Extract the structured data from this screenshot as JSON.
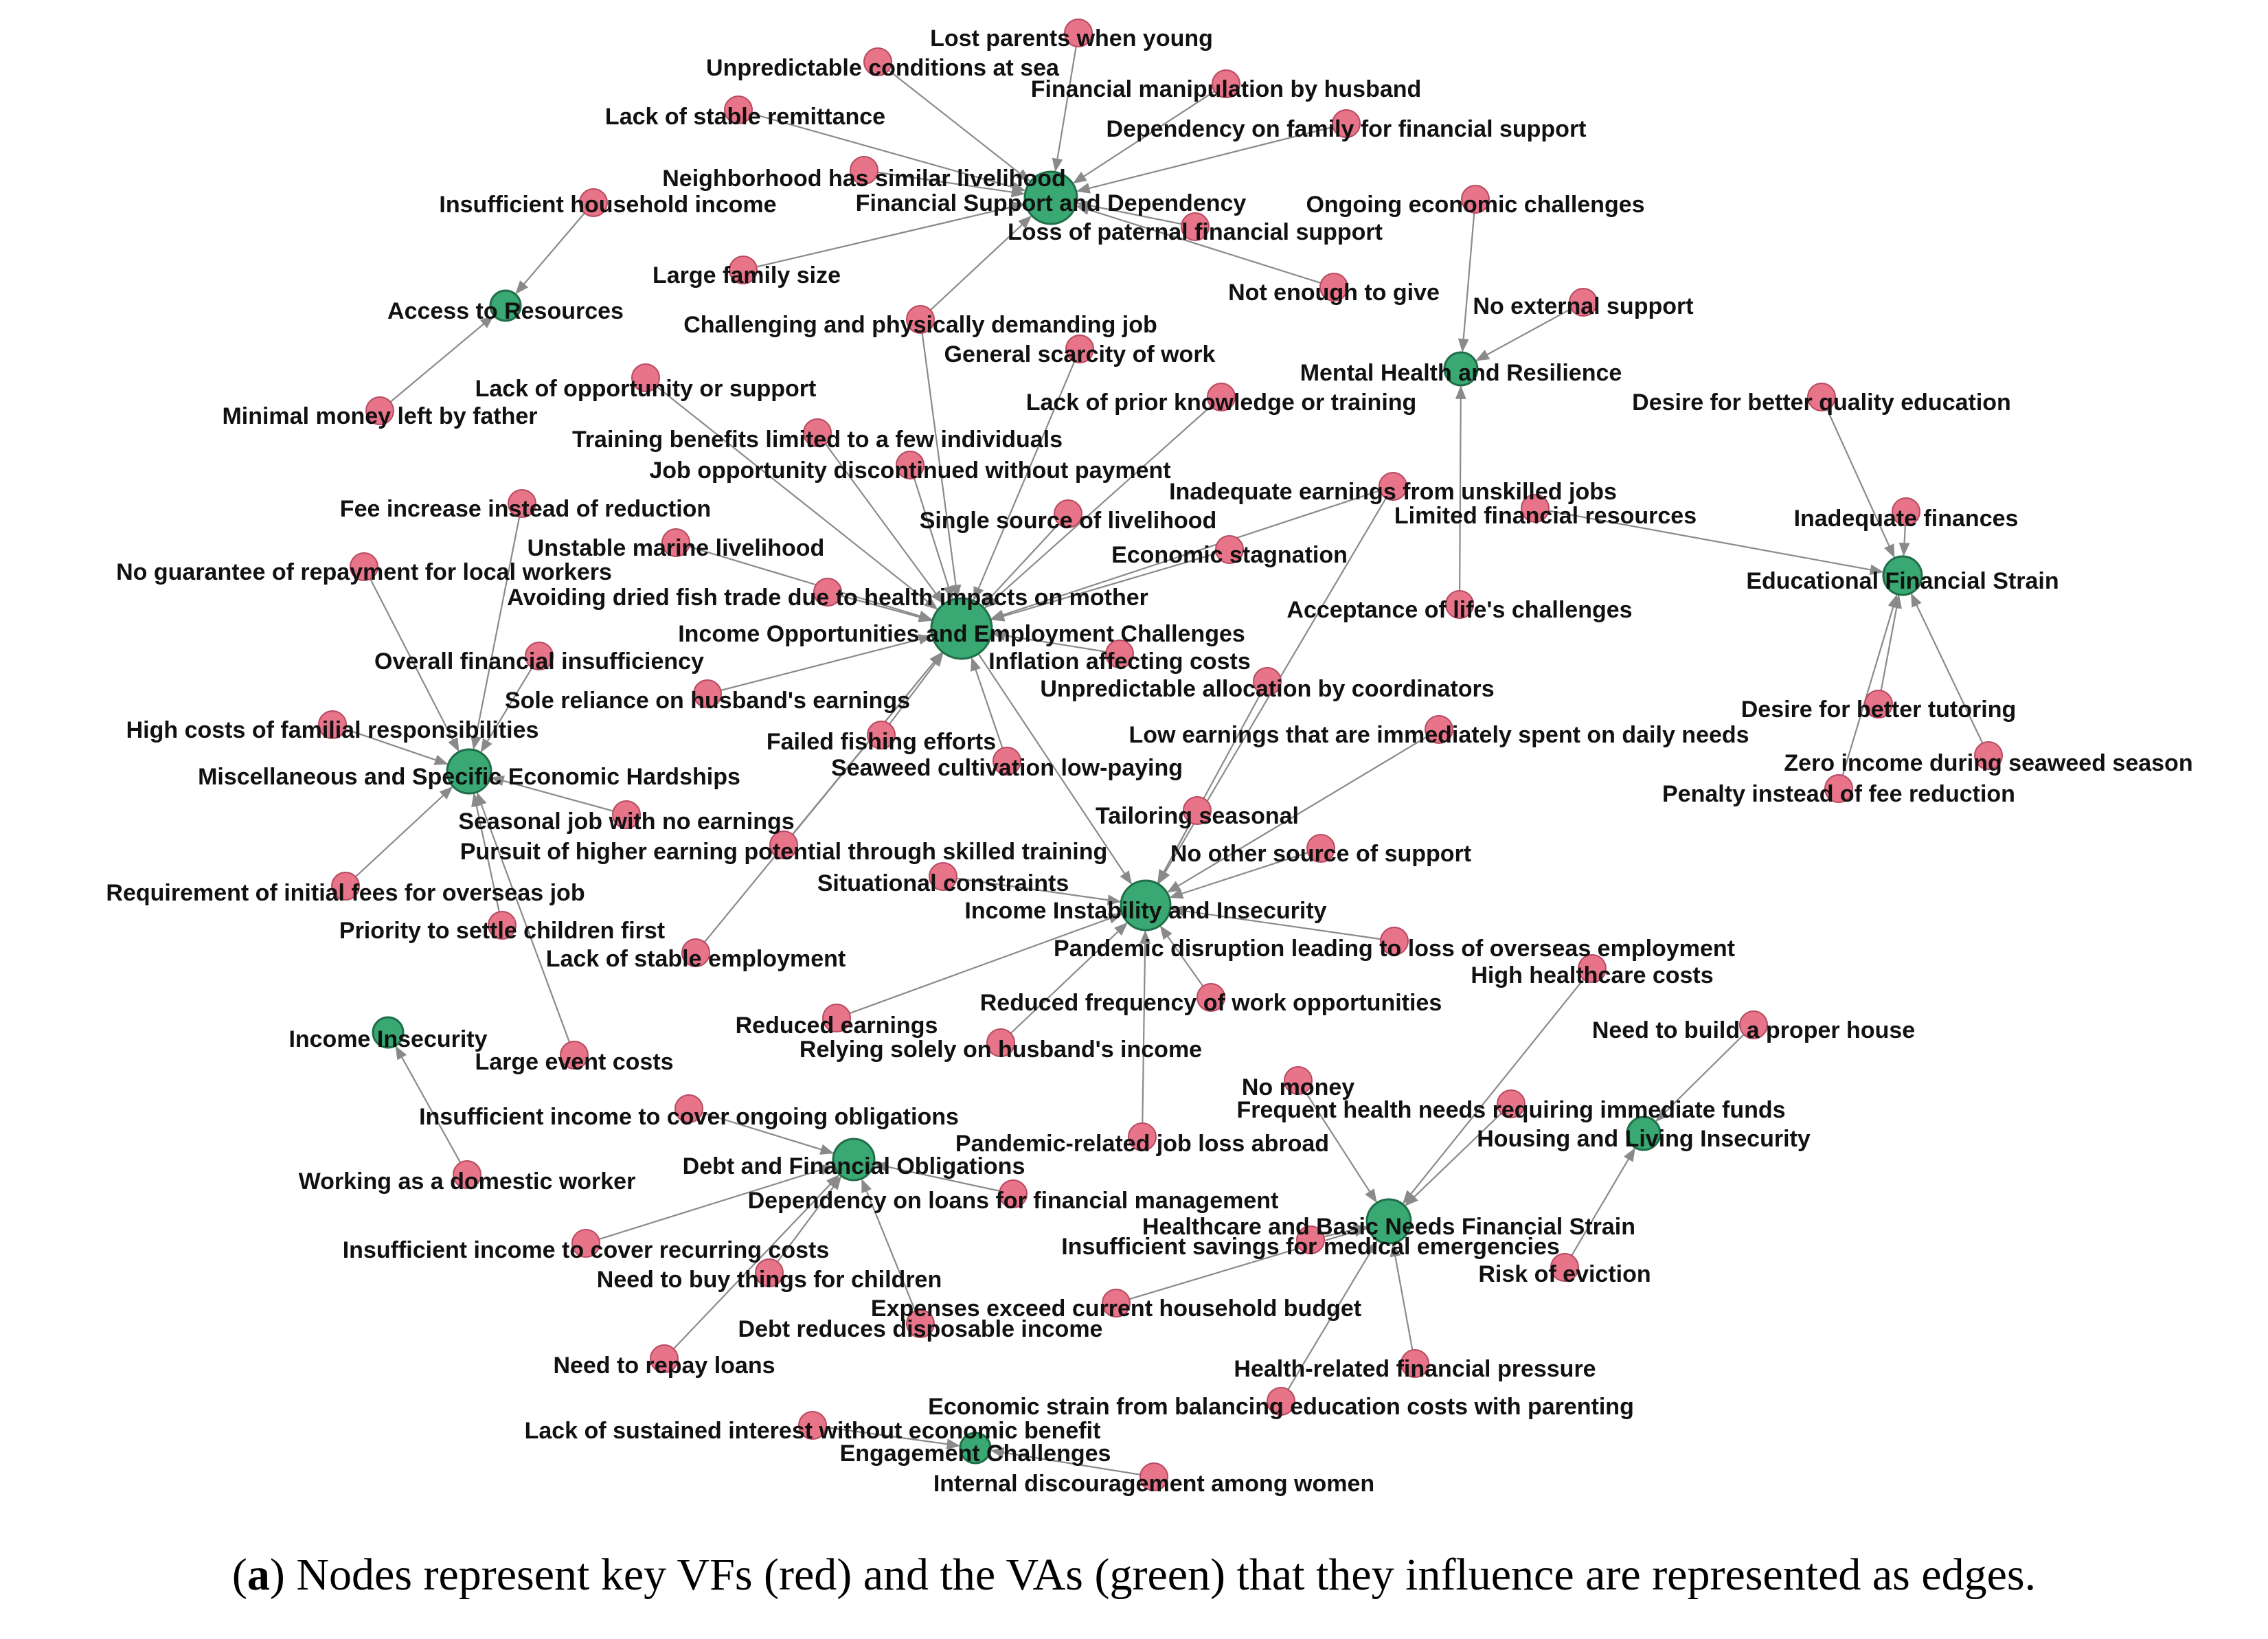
{
  "colors": {
    "vf": "#e8748a",
    "va": "#3aa872",
    "vf_stroke": "#b84a5f",
    "va_stroke": "#1f6e48",
    "edge": "#8a8a8a"
  },
  "caption": {
    "label": "a",
    "open": "(",
    "close": ")",
    "text": " Nodes represent key VFs (red) and the VAs (green) that they influence are represented as edges."
  },
  "nodes": [
    {
      "id": "fsd",
      "type": "va",
      "label": "Financial Support and Dependency"
    },
    {
      "id": "ioe",
      "type": "va",
      "label": "Income Opportunities and Employment Challenges"
    },
    {
      "id": "iii",
      "type": "va",
      "label": "Income Instability and Insecurity"
    },
    {
      "id": "mse",
      "type": "va",
      "label": "Miscellaneous and Specific Economic Hardships"
    },
    {
      "id": "mhr",
      "type": "va",
      "label": "Mental Health and Resilience"
    },
    {
      "id": "efs",
      "type": "va",
      "label": "Educational Financial Strain"
    },
    {
      "id": "atr",
      "type": "va",
      "label": "Access to Resources"
    },
    {
      "id": "ins",
      "type": "va",
      "label": "Income Insecurity"
    },
    {
      "id": "dfo",
      "type": "va",
      "label": "Debt and Financial Obligations"
    },
    {
      "id": "hbn",
      "type": "va",
      "label": "Healthcare and Basic Needs Financial Strain"
    },
    {
      "id": "hli",
      "type": "va",
      "label": "Housing and Living Insecurity"
    },
    {
      "id": "ech",
      "type": "va",
      "label": "Engagement Challenges"
    },
    {
      "id": "v1",
      "type": "vf",
      "label": "Lost parents when young"
    },
    {
      "id": "v2",
      "type": "vf",
      "label": "Unpredictable conditions at sea"
    },
    {
      "id": "v3",
      "type": "vf",
      "label": "Financial manipulation by husband"
    },
    {
      "id": "v4",
      "type": "vf",
      "label": "Lack of stable remittance"
    },
    {
      "id": "v5",
      "type": "vf",
      "label": "Dependency on family for financial support"
    },
    {
      "id": "v6",
      "type": "vf",
      "label": "Neighborhood has similar livelihood"
    },
    {
      "id": "v7",
      "type": "vf",
      "label": "Insufficient household income"
    },
    {
      "id": "v8",
      "type": "vf",
      "label": "Ongoing economic challenges"
    },
    {
      "id": "v9",
      "type": "vf",
      "label": "Loss of paternal financial support"
    },
    {
      "id": "v10",
      "type": "vf",
      "label": "Large family size"
    },
    {
      "id": "v11",
      "type": "vf",
      "label": "Not enough to give"
    },
    {
      "id": "v12",
      "type": "vf",
      "label": "No external support"
    },
    {
      "id": "v13",
      "type": "vf",
      "label": "Challenging and physically demanding job"
    },
    {
      "id": "v14",
      "type": "vf",
      "label": "General scarcity of work"
    },
    {
      "id": "v15",
      "type": "vf",
      "label": "Lack of opportunity or support"
    },
    {
      "id": "v16",
      "type": "vf",
      "label": "Lack of prior knowledge or training"
    },
    {
      "id": "v17",
      "type": "vf",
      "label": "Desire for better quality education"
    },
    {
      "id": "v18",
      "type": "vf",
      "label": "Minimal money left by father"
    },
    {
      "id": "v19",
      "type": "vf",
      "label": "Training benefits limited to a few individuals"
    },
    {
      "id": "v20",
      "type": "vf",
      "label": "Job opportunity discontinued without payment"
    },
    {
      "id": "v21",
      "type": "vf",
      "label": "Inadequate earnings from unskilled jobs"
    },
    {
      "id": "v22",
      "type": "vf",
      "label": "Limited financial resources"
    },
    {
      "id": "v23",
      "type": "vf",
      "label": "Fee increase instead of reduction"
    },
    {
      "id": "v24",
      "type": "vf",
      "label": "Single source of livelihood"
    },
    {
      "id": "v25",
      "type": "vf",
      "label": "Inadequate finances"
    },
    {
      "id": "v26",
      "type": "vf",
      "label": "Unstable marine livelihood"
    },
    {
      "id": "v27",
      "type": "vf",
      "label": "Economic stagnation"
    },
    {
      "id": "v28",
      "type": "vf",
      "label": "No guarantee of repayment for local workers"
    },
    {
      "id": "v29",
      "type": "vf",
      "label": "Avoiding dried fish trade due to health impacts on mother"
    },
    {
      "id": "v30",
      "type": "vf",
      "label": "Acceptance of life's challenges"
    },
    {
      "id": "v31",
      "type": "vf",
      "label": "Overall financial insufficiency"
    },
    {
      "id": "v32",
      "type": "vf",
      "label": "Inflation affecting costs"
    },
    {
      "id": "v33",
      "type": "vf",
      "label": "Unpredictable allocation by coordinators"
    },
    {
      "id": "v34",
      "type": "vf",
      "label": "Sole reliance on husband's earnings"
    },
    {
      "id": "v35",
      "type": "vf",
      "label": "High costs of familial responsibilities"
    },
    {
      "id": "v36",
      "type": "vf",
      "label": "Desire for better tutoring"
    },
    {
      "id": "v37",
      "type": "vf",
      "label": "Low earnings that are immediately spent on daily needs"
    },
    {
      "id": "v38",
      "type": "vf",
      "label": "Failed fishing efforts"
    },
    {
      "id": "v39",
      "type": "vf",
      "label": "Zero income during seaweed season"
    },
    {
      "id": "v40",
      "type": "vf",
      "label": "Seaweed cultivation low-paying"
    },
    {
      "id": "v41",
      "type": "vf",
      "label": "Penalty instead of fee reduction"
    },
    {
      "id": "v42",
      "type": "vf",
      "label": "Tailoring seasonal"
    },
    {
      "id": "v43",
      "type": "vf",
      "label": "Seasonal job with no earnings"
    },
    {
      "id": "v44",
      "type": "vf",
      "label": "Pursuit of higher earning potential through skilled training"
    },
    {
      "id": "v45",
      "type": "vf",
      "label": "No other source of support"
    },
    {
      "id": "v46",
      "type": "vf",
      "label": "Situational constraints"
    },
    {
      "id": "v47",
      "type": "vf",
      "label": "Requirement of initial fees for overseas job"
    },
    {
      "id": "v48",
      "type": "vf",
      "label": "Priority to settle children first"
    },
    {
      "id": "v49",
      "type": "vf",
      "label": "Lack of stable employment"
    },
    {
      "id": "v50",
      "type": "vf",
      "label": "Pandemic disruption leading to loss of overseas employment"
    },
    {
      "id": "v51",
      "type": "vf",
      "label": "High healthcare costs"
    },
    {
      "id": "v52",
      "type": "vf",
      "label": "Reduced frequency of work opportunities"
    },
    {
      "id": "v53",
      "type": "vf",
      "label": "Reduced earnings"
    },
    {
      "id": "v54",
      "type": "vf",
      "label": "Need to build a proper house"
    },
    {
      "id": "v55",
      "type": "vf",
      "label": "Relying solely on husband's income"
    },
    {
      "id": "v56",
      "type": "vf",
      "label": "Large event costs"
    },
    {
      "id": "v57",
      "type": "vf",
      "label": "No money"
    },
    {
      "id": "v58",
      "type": "vf",
      "label": "Insufficient income to cover ongoing obligations"
    },
    {
      "id": "v59",
      "type": "vf",
      "label": "Frequent health needs requiring immediate funds"
    },
    {
      "id": "v60",
      "type": "vf",
      "label": "Pandemic-related job loss abroad"
    },
    {
      "id": "v61",
      "type": "vf",
      "label": "Working as a domestic worker"
    },
    {
      "id": "v62",
      "type": "vf",
      "label": "Dependency on loans for financial management"
    },
    {
      "id": "v63",
      "type": "vf",
      "label": "Insufficient savings for medical emergencies"
    },
    {
      "id": "v64",
      "type": "vf",
      "label": "Insufficient income to cover recurring costs"
    },
    {
      "id": "v65",
      "type": "vf",
      "label": "Need to buy things for children"
    },
    {
      "id": "v66",
      "type": "vf",
      "label": "Risk of eviction"
    },
    {
      "id": "v67",
      "type": "vf",
      "label": "Expenses exceed current household budget"
    },
    {
      "id": "v68",
      "type": "vf",
      "label": "Debt reduces disposable income"
    },
    {
      "id": "v69",
      "type": "vf",
      "label": "Need to repay loans"
    },
    {
      "id": "v70",
      "type": "vf",
      "label": "Health-related financial pressure"
    },
    {
      "id": "v71",
      "type": "vf",
      "label": "Economic strain from balancing education costs with parenting"
    },
    {
      "id": "v72",
      "type": "vf",
      "label": "Lack of sustained interest without economic benefit"
    },
    {
      "id": "v73",
      "type": "vf",
      "label": "Internal discouragement among women"
    }
  ],
  "edges": [
    [
      "v1",
      "fsd"
    ],
    [
      "v2",
      "fsd"
    ],
    [
      "v3",
      "fsd"
    ],
    [
      "v4",
      "fsd"
    ],
    [
      "v5",
      "fsd"
    ],
    [
      "v6",
      "fsd"
    ],
    [
      "v9",
      "fsd"
    ],
    [
      "v10",
      "fsd"
    ],
    [
      "v11",
      "fsd"
    ],
    [
      "v13",
      "fsd"
    ],
    [
      "v7",
      "atr"
    ],
    [
      "v18",
      "atr"
    ],
    [
      "v8",
      "mhr"
    ],
    [
      "v12",
      "mhr"
    ],
    [
      "v30",
      "mhr"
    ],
    [
      "v17",
      "efs"
    ],
    [
      "v22",
      "efs"
    ],
    [
      "v25",
      "efs"
    ],
    [
      "v36",
      "efs"
    ],
    [
      "v39",
      "efs"
    ],
    [
      "v41",
      "efs"
    ],
    [
      "v14",
      "ioe"
    ],
    [
      "v15",
      "ioe"
    ],
    [
      "v16",
      "ioe"
    ],
    [
      "v19",
      "ioe"
    ],
    [
      "v20",
      "ioe"
    ],
    [
      "v21",
      "ioe"
    ],
    [
      "v24",
      "ioe"
    ],
    [
      "v26",
      "ioe"
    ],
    [
      "v27",
      "ioe"
    ],
    [
      "v29",
      "ioe"
    ],
    [
      "v32",
      "ioe"
    ],
    [
      "v34",
      "ioe"
    ],
    [
      "v38",
      "ioe"
    ],
    [
      "v40",
      "ioe"
    ],
    [
      "v44",
      "ioe"
    ],
    [
      "v49",
      "ioe"
    ],
    [
      "v13",
      "ioe"
    ],
    [
      "v23",
      "mse"
    ],
    [
      "v28",
      "mse"
    ],
    [
      "v31",
      "mse"
    ],
    [
      "v35",
      "mse"
    ],
    [
      "v43",
      "mse"
    ],
    [
      "v47",
      "mse"
    ],
    [
      "v48",
      "mse"
    ],
    [
      "v56",
      "mse"
    ],
    [
      "v33",
      "iii"
    ],
    [
      "v37",
      "iii"
    ],
    [
      "v42",
      "iii"
    ],
    [
      "v45",
      "iii"
    ],
    [
      "v46",
      "iii"
    ],
    [
      "v50",
      "iii"
    ],
    [
      "v52",
      "iii"
    ],
    [
      "v53",
      "iii"
    ],
    [
      "v55",
      "iii"
    ],
    [
      "v60",
      "iii"
    ],
    [
      "ioe",
      "iii"
    ],
    [
      "v21",
      "iii"
    ],
    [
      "v61",
      "ins"
    ],
    [
      "v58",
      "dfo"
    ],
    [
      "v62",
      "dfo"
    ],
    [
      "v64",
      "dfo"
    ],
    [
      "v65",
      "dfo"
    ],
    [
      "v68",
      "dfo"
    ],
    [
      "v69",
      "dfo"
    ],
    [
      "v51",
      "hbn"
    ],
    [
      "v57",
      "hbn"
    ],
    [
      "v59",
      "hbn"
    ],
    [
      "v63",
      "hbn"
    ],
    [
      "v67",
      "hbn"
    ],
    [
      "v70",
      "hbn"
    ],
    [
      "v71",
      "hbn"
    ],
    [
      "v54",
      "hli"
    ],
    [
      "v66",
      "hli"
    ],
    [
      "v72",
      "ech"
    ],
    [
      "v73",
      "ech"
    ]
  ]
}
